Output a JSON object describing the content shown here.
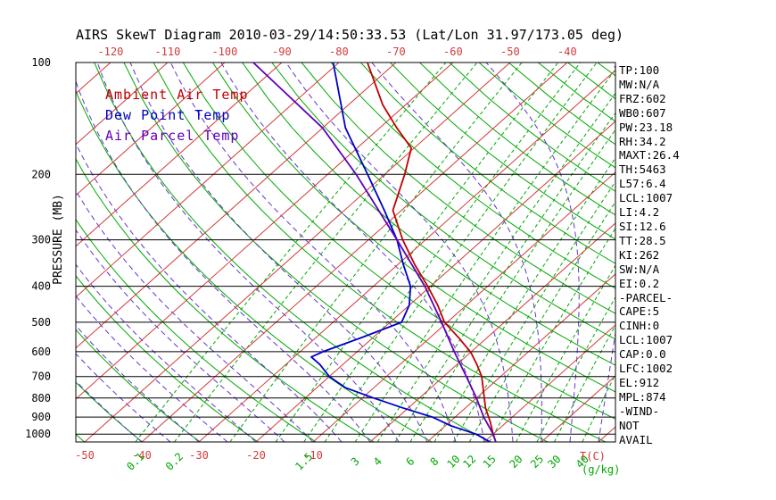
{
  "title": "AIRS SkewT Diagram 2010-03-29/14:50:33.53 (Lat/Lon 31.97/173.05 deg)",
  "legend": {
    "ambient_label": "Ambient Air Temp",
    "dewpoint_label": "Dew Point Temp",
    "parcel_label": "Air Parcel Temp"
  },
  "axes": {
    "pressure_axis_label": "PRESSURE (MB)",
    "pressure_ticks": [
      100,
      200,
      300,
      400,
      500,
      600,
      700,
      800,
      900,
      1000
    ],
    "top_temperature_ticks_c": [
      -120,
      -110,
      -100,
      -90,
      -80,
      -70,
      -60,
      -50,
      -40
    ],
    "bottom_temperature_ticks_c": [
      -50,
      -40,
      -30,
      -20,
      -10
    ],
    "mixing_ratio_tick_labels": [
      0.1,
      0.2,
      1.5,
      3,
      4,
      6,
      8,
      10,
      12,
      15,
      20,
      25,
      30,
      40
    ],
    "temperature_unit_label": "T(C)",
    "mixing_ratio_unit_label": "(g/kg)"
  },
  "stats_panel": {
    "lines": [
      "TP:100",
      "MW:N/A",
      "FRZ:602",
      "WB0:607",
      "PW:23.18",
      "RH:34.2",
      "MAXT:26.4",
      "TH:5463",
      "L57:6.4",
      "LCL:1007",
      "LI:4.2",
      "SI:12.6",
      "TT:28.5",
      "KI:262",
      "SW:N/A",
      "EI:0.2",
      "-PARCEL-",
      "CAPE:5",
      "CINH:0",
      "LCL:1007",
      "CAP:0.0",
      "LFC:1002",
      "EL:912",
      "MPL:874",
      "-WIND-",
      "NOT",
      "AVAIL"
    ]
  },
  "colors": {
    "isotherm_red": "#d13b3b",
    "adiabat_green": "#00a800",
    "moist_adiabat_purple": "#6633cc",
    "trace_ambient": "#c00000",
    "trace_dewpoint": "#0000c8",
    "trace_parcel": "#5f00b8",
    "axis_black": "#000000",
    "background": "#ffffff"
  },
  "chart_data": {
    "type": "line",
    "title": "AIRS SkewT Diagram 2010-03-29/14:50:33.53 (Lat/Lon 31.97/173.05 deg)",
    "x_axis": {
      "label": "Temperature (C)",
      "skewed": true
    },
    "y_axis": {
      "label": "Pressure (MB)",
      "scale": "log",
      "range": [
        100,
        1050
      ],
      "inverted": true
    },
    "series": [
      {
        "name": "Ambient Air Temp",
        "points_p_t": [
          [
            1050,
            22
          ],
          [
            1000,
            20
          ],
          [
            925,
            17
          ],
          [
            850,
            13.5
          ],
          [
            700,
            6.7
          ],
          [
            650,
            3.5
          ],
          [
            602,
            0
          ],
          [
            550,
            -5
          ],
          [
            500,
            -10.5
          ],
          [
            450,
            -15
          ],
          [
            400,
            -20.5
          ],
          [
            350,
            -27
          ],
          [
            300,
            -34
          ],
          [
            250,
            -41.5
          ],
          [
            200,
            -46.5
          ],
          [
            170,
            -50.5
          ],
          [
            150,
            -57
          ],
          [
            130,
            -64
          ],
          [
            100,
            -75
          ]
        ]
      },
      {
        "name": "Dew Point Temp",
        "points_p_t": [
          [
            1050,
            21
          ],
          [
            1000,
            17
          ],
          [
            950,
            11
          ],
          [
            900,
            6
          ],
          [
            850,
            -1
          ],
          [
            800,
            -8
          ],
          [
            750,
            -15
          ],
          [
            700,
            -20
          ],
          [
            650,
            -24
          ],
          [
            620,
            -27
          ],
          [
            600,
            -26
          ],
          [
            550,
            -22
          ],
          [
            500,
            -18
          ],
          [
            450,
            -20
          ],
          [
            400,
            -23.5
          ],
          [
            350,
            -29
          ],
          [
            300,
            -35
          ],
          [
            250,
            -43
          ],
          [
            200,
            -53
          ],
          [
            150,
            -66
          ],
          [
            100,
            -81
          ]
        ]
      },
      {
        "name": "Air Parcel Temp",
        "points_p_t": [
          [
            1050,
            22
          ],
          [
            1000,
            20
          ],
          [
            900,
            15
          ],
          [
            800,
            10
          ],
          [
            700,
            4
          ],
          [
            600,
            -3
          ],
          [
            500,
            -11
          ],
          [
            400,
            -21
          ],
          [
            300,
            -35
          ],
          [
            250,
            -44
          ],
          [
            200,
            -55
          ],
          [
            150,
            -70
          ],
          [
            100,
            -95
          ]
        ]
      }
    ],
    "background_lines": {
      "isotherms_c": {
        "start": -120,
        "end": 40,
        "step": 10
      },
      "dry_adiabats_theta_k": {
        "start": 220,
        "end": 460,
        "step": 10
      },
      "moist_adiabats_start_c": {
        "start": -40,
        "end": 40,
        "step": 5
      },
      "mixing_ratio_g_kg": [
        0.1,
        0.2,
        0.5,
        1,
        1.5,
        2,
        3,
        4,
        5,
        6,
        8,
        10,
        12,
        15,
        20,
        25,
        30,
        40
      ]
    }
  }
}
